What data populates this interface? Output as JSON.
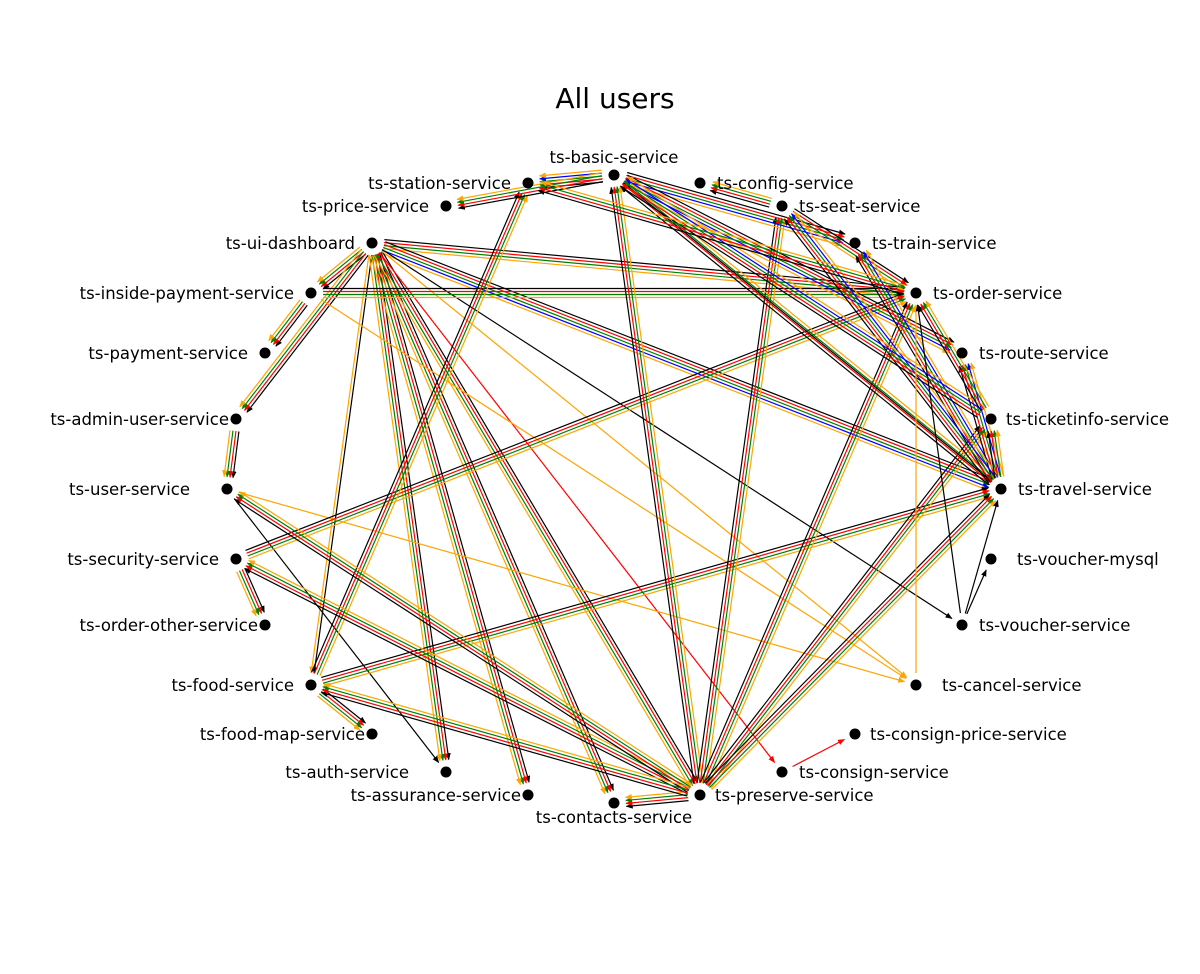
{
  "title": "All users",
  "lane_colors": [
    "#000000",
    "#ff0000",
    "#008000",
    "#0000ff",
    "#ffa500"
  ],
  "nodes": [
    {
      "id": "basic",
      "label": "ts-basic-service"
    },
    {
      "id": "config",
      "label": "ts-config-service"
    },
    {
      "id": "station",
      "label": "ts-station-service"
    },
    {
      "id": "seat",
      "label": "ts-seat-service"
    },
    {
      "id": "price",
      "label": "ts-price-service"
    },
    {
      "id": "train",
      "label": "ts-train-service"
    },
    {
      "id": "ui",
      "label": "ts-ui-dashboard"
    },
    {
      "id": "order",
      "label": "ts-order-service"
    },
    {
      "id": "insidepay",
      "label": "ts-inside-payment-service"
    },
    {
      "id": "route",
      "label": "ts-route-service"
    },
    {
      "id": "payment",
      "label": "ts-payment-service"
    },
    {
      "id": "ticketinfo",
      "label": "ts-ticketinfo-service"
    },
    {
      "id": "adminuser",
      "label": "ts-admin-user-service"
    },
    {
      "id": "travel",
      "label": "ts-travel-service"
    },
    {
      "id": "user",
      "label": "ts-user-service"
    },
    {
      "id": "vouchermysql",
      "label": "ts-voucher-mysql"
    },
    {
      "id": "security",
      "label": "ts-security-service"
    },
    {
      "id": "voucher",
      "label": "ts-voucher-service"
    },
    {
      "id": "orderother",
      "label": "ts-order-other-service"
    },
    {
      "id": "cancel",
      "label": "ts-cancel-service"
    },
    {
      "id": "food",
      "label": "ts-food-service"
    },
    {
      "id": "consignprice",
      "label": "ts-consign-price-service"
    },
    {
      "id": "foodmap",
      "label": "ts-food-map-service"
    },
    {
      "id": "consign",
      "label": "ts-consign-service"
    },
    {
      "id": "auth",
      "label": "ts-auth-service"
    },
    {
      "id": "preserve",
      "label": "ts-preserve-service"
    },
    {
      "id": "assurance",
      "label": "ts-assurance-service"
    },
    {
      "id": "contacts",
      "label": "ts-contacts-service"
    }
  ],
  "edges": [
    {
      "from": "ui",
      "to": "insidepay",
      "colors": [
        "#000000",
        "#ff0000",
        "#008000",
        "#ffa500"
      ]
    },
    {
      "from": "ui",
      "to": "adminuser",
      "colors": [
        "#000000",
        "#ff0000",
        "#008000",
        "#ffa500"
      ]
    },
    {
      "from": "ui",
      "to": "order",
      "colors": [
        "#000000",
        "#ff0000",
        "#008000",
        "#ffa500"
      ]
    },
    {
      "from": "ui",
      "to": "travel",
      "colors": [
        "#000000",
        "#ff0000",
        "#008000",
        "#0000ff",
        "#ffa500"
      ]
    },
    {
      "from": "ui",
      "to": "food",
      "colors": [
        "#000000",
        "#ffa500"
      ]
    },
    {
      "from": "ui",
      "to": "auth",
      "colors": [
        "#000000",
        "#ff0000",
        "#008000",
        "#ffa500"
      ]
    },
    {
      "from": "ui",
      "to": "assurance",
      "colors": [
        "#000000",
        "#ff0000",
        "#008000",
        "#ffa500"
      ]
    },
    {
      "from": "ui",
      "to": "contacts",
      "colors": [
        "#000000",
        "#ff0000",
        "#008000",
        "#ffa500"
      ]
    },
    {
      "from": "ui",
      "to": "preserve",
      "colors": [
        "#000000",
        "#ff0000",
        "#008000",
        "#ffa500"
      ]
    },
    {
      "from": "ui",
      "to": "consign",
      "colors": [
        "#ff0000"
      ]
    },
    {
      "from": "ui",
      "to": "voucher",
      "colors": [
        "#000000"
      ]
    },
    {
      "from": "ui",
      "to": "cancel",
      "colors": [
        "#ffa500"
      ]
    },
    {
      "from": "insidepay",
      "to": "payment",
      "colors": [
        "#000000",
        "#ff0000",
        "#008000",
        "#ffa500"
      ]
    },
    {
      "from": "insidepay",
      "to": "order",
      "colors": [
        "#000000",
        "#ff0000",
        "#008000",
        "#ffa500"
      ]
    },
    {
      "from": "insidepay",
      "to": "cancel",
      "colors": [
        "#ffa500"
      ]
    },
    {
      "from": "adminuser",
      "to": "user",
      "colors": [
        "#000000",
        "#ff0000",
        "#008000",
        "#ffa500"
      ]
    },
    {
      "from": "user",
      "to": "auth",
      "colors": [
        "#000000"
      ]
    },
    {
      "from": "user",
      "to": "cancel",
      "colors": [
        "#ffa500"
      ]
    },
    {
      "from": "security",
      "to": "orderother",
      "colors": [
        "#000000",
        "#ff0000",
        "#008000",
        "#ffa500"
      ]
    },
    {
      "from": "security",
      "to": "order",
      "colors": [
        "#000000",
        "#ff0000",
        "#008000",
        "#ffa500"
      ]
    },
    {
      "from": "food",
      "to": "foodmap",
      "colors": [
        "#000000",
        "#ff0000",
        "#008000",
        "#ffa500"
      ]
    },
    {
      "from": "food",
      "to": "station",
      "colors": [
        "#000000",
        "#ff0000",
        "#008000",
        "#ffa500"
      ]
    },
    {
      "from": "food",
      "to": "travel",
      "colors": [
        "#000000",
        "#ff0000",
        "#008000",
        "#ffa500"
      ]
    },
    {
      "from": "preserve",
      "to": "contacts",
      "colors": [
        "#000000",
        "#ff0000",
        "#008000",
        "#ffa500"
      ]
    },
    {
      "from": "preserve",
      "to": "basic",
      "colors": [
        "#000000",
        "#ff0000",
        "#008000",
        "#ffa500"
      ]
    },
    {
      "from": "preserve",
      "to": "seat",
      "colors": [
        "#000000",
        "#ff0000",
        "#008000",
        "#ffa500"
      ]
    },
    {
      "from": "preserve",
      "to": "order",
      "colors": [
        "#000000",
        "#ff0000",
        "#008000",
        "#ffa500"
      ]
    },
    {
      "from": "preserve",
      "to": "ticketinfo",
      "colors": [
        "#000000",
        "#ff0000",
        "#008000",
        "#ffa500"
      ]
    },
    {
      "from": "preserve",
      "to": "travel",
      "colors": [
        "#000000",
        "#ff0000",
        "#008000",
        "#ffa500"
      ]
    },
    {
      "from": "preserve",
      "to": "security",
      "colors": [
        "#000000",
        "#ff0000",
        "#008000",
        "#ffa500"
      ]
    },
    {
      "from": "preserve",
      "to": "user",
      "colors": [
        "#000000",
        "#ff0000",
        "#008000",
        "#ffa500"
      ]
    },
    {
      "from": "preserve",
      "to": "food",
      "colors": [
        "#000000",
        "#ff0000",
        "#008000",
        "#ffa500"
      ]
    },
    {
      "from": "basic",
      "to": "station",
      "colors": [
        "#000000",
        "#ff0000",
        "#008000",
        "#0000ff",
        "#ffa500"
      ]
    },
    {
      "from": "basic",
      "to": "price",
      "colors": [
        "#000000",
        "#ff0000",
        "#008000",
        "#ffa500"
      ]
    },
    {
      "from": "basic",
      "to": "train",
      "colors": [
        "#000000",
        "#ff0000",
        "#008000",
        "#0000ff",
        "#ffa500"
      ]
    },
    {
      "from": "basic",
      "to": "route",
      "colors": [
        "#000000",
        "#ff0000",
        "#008000",
        "#0000ff",
        "#ffa500"
      ]
    },
    {
      "from": "basic",
      "to": "travel",
      "colors": [
        "#000000"
      ]
    },
    {
      "from": "seat",
      "to": "config",
      "colors": [
        "#000000",
        "#ff0000",
        "#008000",
        "#ffa500"
      ]
    },
    {
      "from": "seat",
      "to": "order",
      "colors": [
        "#000000",
        "#ff0000",
        "#008000",
        "#ffa500"
      ]
    },
    {
      "from": "travel",
      "to": "basic",
      "colors": [
        "#000000",
        "#ff0000",
        "#008000",
        "#ffa500"
      ]
    },
    {
      "from": "travel",
      "to": "train",
      "colors": [
        "#000000",
        "#ff0000",
        "#008000",
        "#0000ff",
        "#ffa500"
      ]
    },
    {
      "from": "travel",
      "to": "route",
      "colors": [
        "#000000",
        "#ff0000",
        "#008000",
        "#0000ff",
        "#ffa500"
      ]
    },
    {
      "from": "travel",
      "to": "seat",
      "colors": [
        "#000000",
        "#ff0000",
        "#008000",
        "#0000ff",
        "#ffa500"
      ]
    },
    {
      "from": "travel",
      "to": "ticketinfo",
      "colors": [
        "#000000",
        "#ff0000",
        "#008000",
        "#ffa500"
      ]
    },
    {
      "from": "ticketinfo",
      "to": "basic",
      "colors": [
        "#000000",
        "#ff0000",
        "#008000",
        "#0000ff",
        "#ffa500"
      ]
    },
    {
      "from": "ticketinfo",
      "to": "order",
      "colors": [
        "#000000",
        "#ff0000",
        "#008000",
        "#ffa500"
      ]
    },
    {
      "from": "order",
      "to": "station",
      "colors": [
        "#000000",
        "#ff0000",
        "#008000",
        "#ffa500"
      ]
    },
    {
      "from": "cancel",
      "to": "order",
      "colors": [
        "#ffa500"
      ]
    },
    {
      "from": "voucher",
      "to": "vouchermysql",
      "colors": [
        "#000000"
      ]
    },
    {
      "from": "voucher",
      "to": "order",
      "colors": [
        "#000000"
      ]
    },
    {
      "from": "voucher",
      "to": "travel",
      "colors": [
        "#000000"
      ]
    },
    {
      "from": "consign",
      "to": "consignprice",
      "colors": [
        "#ff0000"
      ]
    }
  ]
}
